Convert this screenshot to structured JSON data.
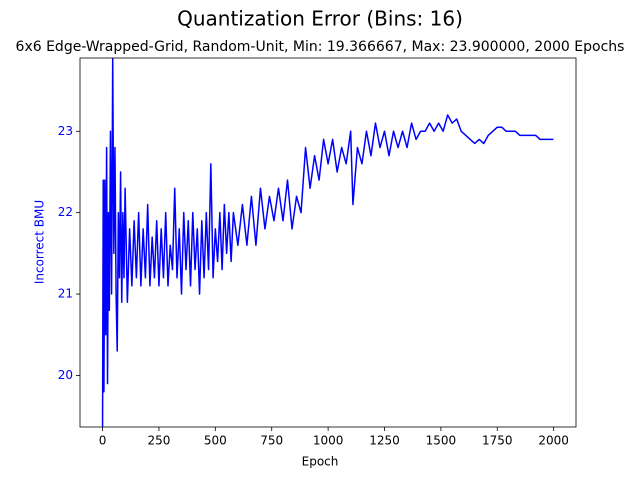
{
  "chart_data": {
    "type": "line",
    "title": "Quantization Error (Bins: 16)",
    "subtitle": "6x6 Edge-Wrapped-Grid, Random-Unit, Min: 19.366667, Max: 23.900000, 2000 Epochs",
    "x_label": "Epoch",
    "y_label": "Incorrect BMU",
    "x": [
      0,
      3,
      6,
      10,
      14,
      18,
      22,
      26,
      30,
      35,
      40,
      45,
      50,
      55,
      60,
      65,
      70,
      75,
      80,
      85,
      90,
      95,
      100,
      110,
      120,
      130,
      140,
      150,
      160,
      170,
      180,
      190,
      200,
      210,
      220,
      230,
      240,
      250,
      260,
      270,
      280,
      290,
      300,
      310,
      320,
      330,
      340,
      350,
      360,
      370,
      380,
      390,
      400,
      410,
      420,
      430,
      440,
      450,
      460,
      470,
      480,
      490,
      500,
      510,
      520,
      530,
      540,
      550,
      560,
      570,
      580,
      600,
      620,
      640,
      660,
      680,
      700,
      720,
      740,
      760,
      780,
      800,
      820,
      840,
      860,
      880,
      900,
      920,
      940,
      960,
      980,
      1000,
      1020,
      1040,
      1060,
      1080,
      1100,
      1110,
      1130,
      1150,
      1170,
      1190,
      1210,
      1230,
      1250,
      1270,
      1290,
      1310,
      1330,
      1350,
      1370,
      1390,
      1410,
      1430,
      1450,
      1470,
      1490,
      1510,
      1530,
      1550,
      1570,
      1590,
      1610,
      1630,
      1650,
      1670,
      1690,
      1710,
      1730,
      1750,
      1770,
      1790,
      1810,
      1830,
      1850,
      1880,
      1900,
      1920,
      1940,
      1999
    ],
    "series": [
      {
        "name": "Incorrect BMU",
        "color": "#0000ff",
        "values": [
          19.37,
          22.4,
          19.8,
          22.4,
          20.5,
          22.8,
          19.9,
          22.0,
          20.8,
          23.0,
          21.0,
          23.9,
          21.5,
          22.8,
          21.0,
          20.3,
          22.0,
          21.2,
          22.5,
          20.9,
          22.0,
          21.2,
          22.3,
          20.9,
          21.8,
          21.1,
          21.9,
          21.2,
          22.0,
          21.1,
          21.8,
          21.2,
          22.1,
          21.1,
          21.7,
          21.2,
          21.9,
          21.1,
          21.8,
          21.2,
          22.0,
          21.1,
          21.6,
          21.3,
          22.3,
          21.2,
          21.8,
          21.0,
          22.0,
          21.3,
          21.9,
          21.1,
          22.0,
          21.3,
          21.8,
          21.0,
          21.9,
          21.2,
          22.0,
          21.3,
          22.6,
          21.2,
          21.8,
          21.4,
          22.0,
          21.3,
          22.1,
          21.5,
          22.0,
          21.4,
          22.0,
          21.6,
          22.1,
          21.6,
          22.2,
          21.6,
          22.3,
          21.8,
          22.2,
          21.9,
          22.3,
          21.9,
          22.4,
          21.8,
          22.2,
          22.0,
          22.8,
          22.3,
          22.7,
          22.4,
          22.9,
          22.6,
          22.9,
          22.5,
          22.8,
          22.6,
          23.0,
          22.1,
          22.8,
          22.6,
          23.0,
          22.7,
          23.1,
          22.8,
          23.0,
          22.7,
          23.0,
          22.8,
          23.0,
          22.8,
          23.1,
          22.9,
          23.0,
          23.0,
          23.1,
          23.0,
          23.1,
          23.0,
          23.2,
          23.1,
          23.15,
          23.0,
          22.95,
          22.9,
          22.85,
          22.9,
          22.85,
          22.95,
          23.0,
          23.05,
          23.05,
          23.0,
          23.0,
          23.0,
          22.95,
          22.95,
          22.95,
          22.95,
          22.9,
          22.9
        ]
      }
    ],
    "xlim": [
      -100,
      2099
    ],
    "ylim": [
      19.366667,
      23.9
    ],
    "xticks": [
      0,
      250,
      500,
      750,
      1000,
      1250,
      1500,
      1750,
      2000
    ],
    "yticks": [
      20,
      21,
      22,
      23
    ],
    "axis_color": "#0000ff"
  }
}
